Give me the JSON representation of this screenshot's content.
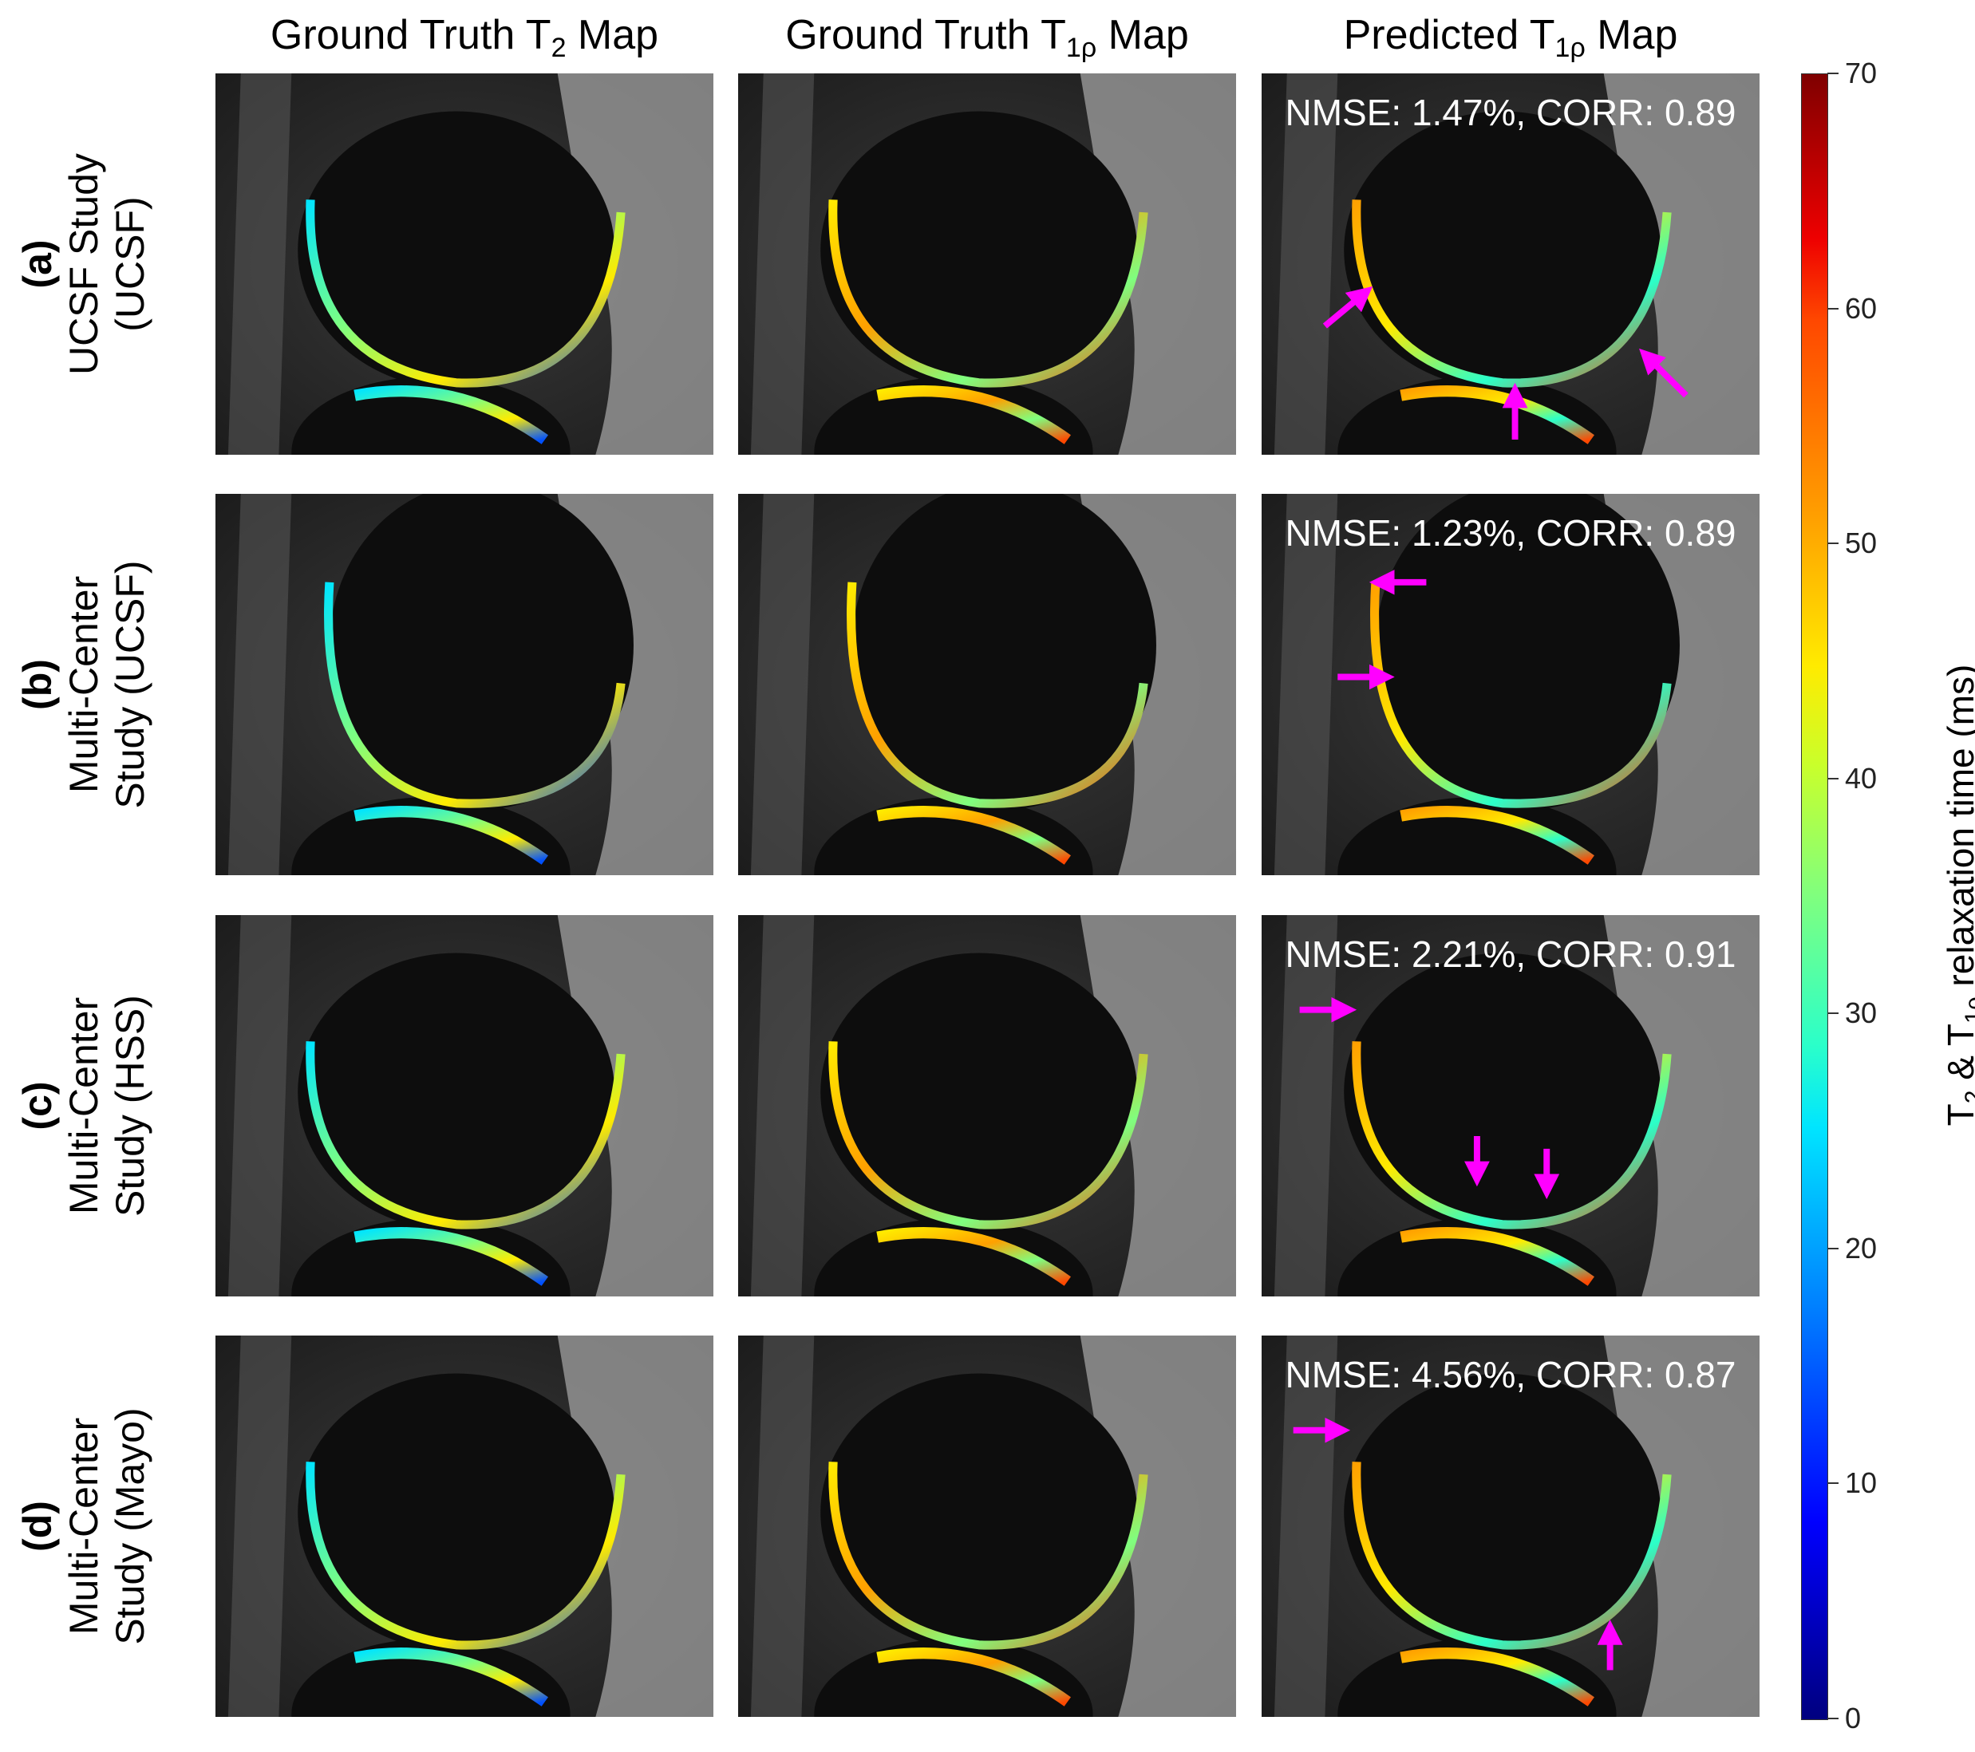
{
  "columns": [
    {
      "title": "Ground Truth T",
      "sub": "2",
      "suffix": " Map"
    },
    {
      "title": "Ground Truth T",
      "sub": "1ρ",
      "suffix": " Map"
    },
    {
      "title": "Predicted T",
      "sub": "1ρ",
      "suffix": " Map"
    }
  ],
  "rows": [
    {
      "letter": "(a)",
      "line1": "UCSF Study",
      "line2": "(UCSF)",
      "metric": "NMSE: 1.47%, CORR: 0.89"
    },
    {
      "letter": "(b)",
      "line1": "Multi-Center",
      "line2": "Study (UCSF)",
      "metric": "NMSE: 1.23%, CORR: 0.89"
    },
    {
      "letter": "(c)",
      "line1": "Multi-Center",
      "line2": "Study (HSS)",
      "metric": "NMSE: 2.21%, CORR: 0.91"
    },
    {
      "letter": "(d)",
      "line1": "Multi-Center",
      "line2": "Study (Mayo)",
      "metric": "NMSE: 4.56%, CORR: 0.87"
    }
  ],
  "colorbar": {
    "colormap": "jet",
    "range": [
      0,
      70
    ],
    "ticks": [
      "0",
      "10",
      "20",
      "30",
      "40",
      "50",
      "60",
      "70"
    ],
    "label_pre": "T",
    "label_sub1": "2",
    "label_mid": " & T",
    "label_sub2": "1ρ",
    "label_post": " relaxation time (ms)"
  },
  "annotation_color": "#ff00ff"
}
